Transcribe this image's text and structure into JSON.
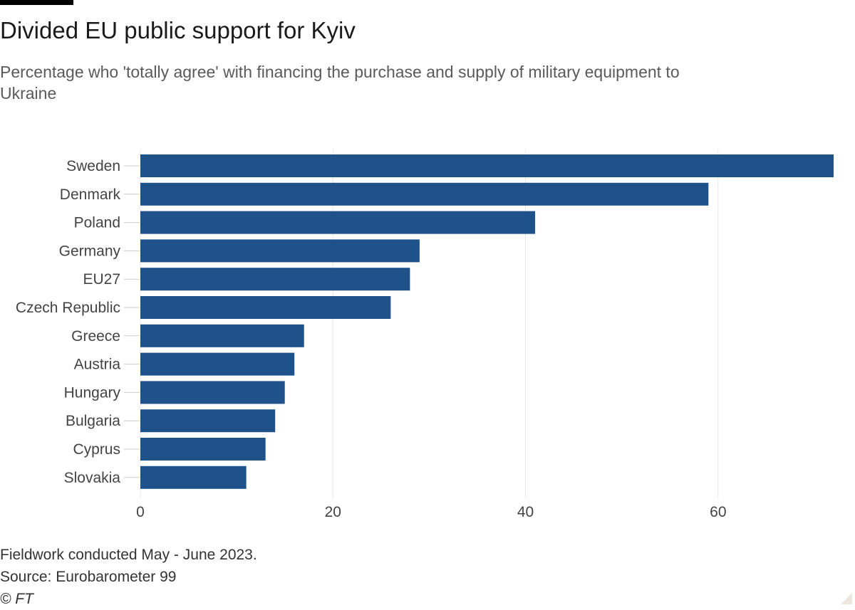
{
  "header": {
    "title": "Divided EU public support for Kyiv",
    "subtitle": "Percentage who 'totally agree' with financing the purchase and supply of military equipment to Ukraine"
  },
  "footer": {
    "note": "Fieldwork conducted May - June 2023.",
    "source": "Source: Eurobarometer 99",
    "copyright": "© FT"
  },
  "colors": {
    "bar": "#1f528b",
    "grid": "#e8e8e8",
    "label": "#444444"
  },
  "chart_data": {
    "type": "bar",
    "orientation": "horizontal",
    "title": "Divided EU public support for Kyiv",
    "xlabel": "",
    "ylabel": "",
    "xlim": [
      0,
      72
    ],
    "xticks": [
      0,
      20,
      40,
      60
    ],
    "grid": true,
    "categories": [
      "Sweden",
      "Denmark",
      "Poland",
      "Germany",
      "EU27",
      "Czech Republic",
      "Greece",
      "Austria",
      "Hungary",
      "Bulgaria",
      "Cyprus",
      "Slovakia"
    ],
    "values": [
      72,
      59,
      41,
      29,
      28,
      26,
      17,
      16,
      15,
      14,
      13,
      11
    ]
  }
}
